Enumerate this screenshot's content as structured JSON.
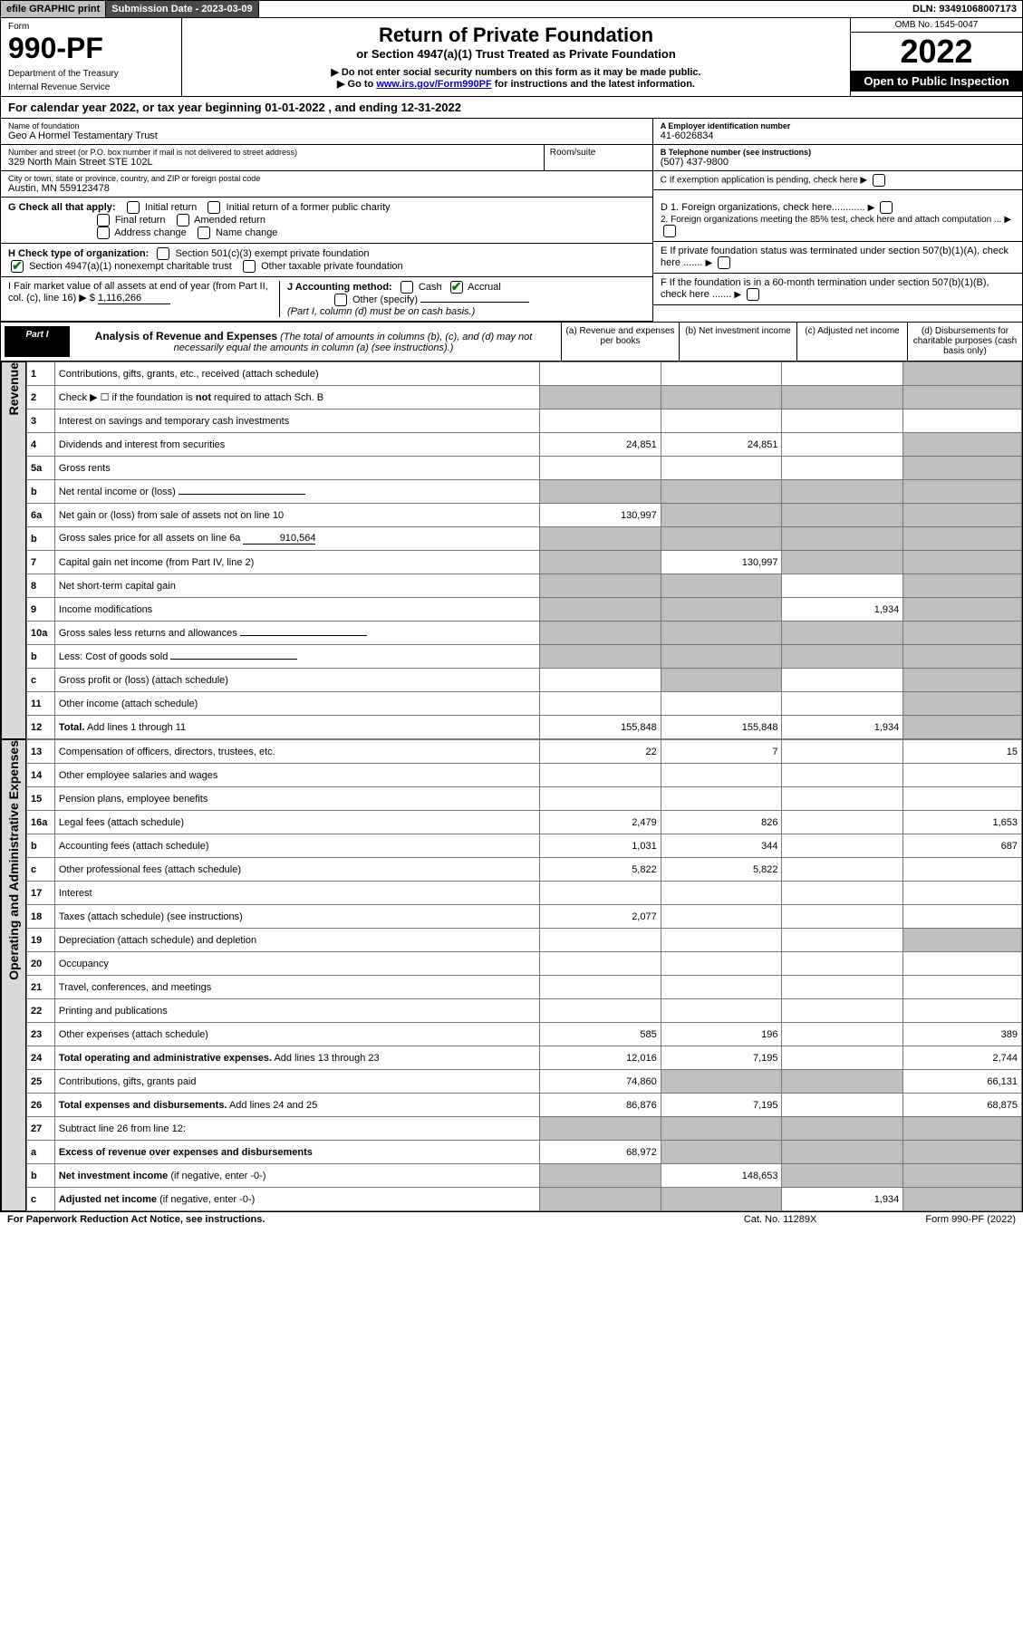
{
  "topbar": {
    "efile": "efile GRAPHIC print",
    "subdate_label": "Submission Date - 2023-03-09",
    "dln": "DLN: 93491068007173"
  },
  "header": {
    "form_label": "Form",
    "form_number": "990-PF",
    "dept1": "Department of the Treasury",
    "dept2": "Internal Revenue Service",
    "title": "Return of Private Foundation",
    "subtitle1": "or Section 4947(a)(1) Trust Treated as Private Foundation",
    "subtitle2": "▶ Do not enter social security numbers on this form as it may be made public.",
    "subtitle3_pre": "▶ Go to ",
    "subtitle3_link": "www.irs.gov/Form990PF",
    "subtitle3_post": " for instructions and the latest information.",
    "omb": "OMB No. 1545-0047",
    "year": "2022",
    "inspect": "Open to Public Inspection"
  },
  "calyear": "For calendar year 2022, or tax year beginning 01-01-2022              , and ending 12-31-2022",
  "foundation": {
    "name_label": "Name of foundation",
    "name": "Geo A Hormel Testamentary Trust",
    "addr_label": "Number and street (or P.O. box number if mail is not delivered to street address)",
    "addr": "329 North Main Street STE 102L",
    "room_label": "Room/suite",
    "city_label": "City or town, state or province, country, and ZIP or foreign postal code",
    "city": "Austin, MN  559123478",
    "ein_label": "A Employer identification number",
    "ein": "41-6026834",
    "phone_label": "B Telephone number (see instructions)",
    "phone": "(507) 437-9800",
    "c_label": "C If exemption application is pending, check here",
    "d1": "D 1. Foreign organizations, check here............",
    "d2": "2. Foreign organizations meeting the 85% test, check here and attach computation ...",
    "e_label": "E  If private foundation status was terminated under section 507(b)(1)(A), check here .......",
    "f_label": "F  If the foundation is in a 60-month termination under section 507(b)(1)(B), check here .......",
    "g_label": "G Check all that apply:",
    "g_opts": [
      "Initial return",
      "Initial return of a former public charity",
      "Final return",
      "Amended return",
      "Address change",
      "Name change"
    ],
    "h_label": "H Check type of organization:",
    "h_opt1": "Section 501(c)(3) exempt private foundation",
    "h_opt2": "Section 4947(a)(1) nonexempt charitable trust",
    "h_opt3": "Other taxable private foundation",
    "i_label": "I Fair market value of all assets at end of year (from Part II, col. (c), line 16) ▶ $",
    "i_value": "1,116,266",
    "j_label": "J Accounting method:",
    "j_cash": "Cash",
    "j_accrual": "Accrual",
    "j_other": "Other (specify)",
    "j_note": "(Part I, column (d) must be on cash basis.)"
  },
  "part1": {
    "tag": "Part I",
    "title": "Analysis of Revenue and Expenses",
    "note": " (The total of amounts in columns (b), (c), and (d) may not necessarily equal the amounts in column (a) (see instructions).)",
    "col_a": "(a)  Revenue and expenses per books",
    "col_b": "(b)  Net investment income",
    "col_c": "(c)  Adjusted net income",
    "col_d": "(d)  Disbursements for charitable purposes (cash basis only)"
  },
  "sections": {
    "revenue": "Revenue",
    "expenses": "Operating and Administrative Expenses"
  },
  "rows": [
    {
      "n": "1",
      "d": "Contributions, gifts, grants, etc., received (attach schedule)",
      "a": "",
      "b": "",
      "c": "",
      "e": "",
      "greyD": true
    },
    {
      "n": "2",
      "d": "Check ▶ ☐ if the foundation is <b>not</b> required to attach Sch. B",
      "nocols": true
    },
    {
      "n": "3",
      "d": "Interest on savings and temporary cash investments",
      "a": "",
      "b": "",
      "c": "",
      "e": ""
    },
    {
      "n": "4",
      "d": "Dividends and interest from securities",
      "a": "24,851",
      "b": "24,851",
      "c": "",
      "e": "",
      "greyD": true
    },
    {
      "n": "5a",
      "d": "Gross rents",
      "a": "",
      "b": "",
      "c": "",
      "e": "",
      "greyD": true
    },
    {
      "n": "b",
      "d": "Net rental income or (loss)",
      "nocols": true,
      "uline": true
    },
    {
      "n": "6a",
      "d": "Net gain or (loss) from sale of assets not on line 10",
      "a": "130,997",
      "greyB": true,
      "greyC": true,
      "greyD": true
    },
    {
      "n": "b",
      "d": "Gross sales price for all assets on line 6a",
      "nocols": true,
      "uval": "910,564"
    },
    {
      "n": "7",
      "d": "Capital gain net income (from Part IV, line 2)",
      "greyA": true,
      "b": "130,997",
      "greyC": true,
      "greyD": true
    },
    {
      "n": "8",
      "d": "Net short-term capital gain",
      "greyA": true,
      "greyB": true,
      "c": "",
      "greyD": true
    },
    {
      "n": "9",
      "d": "Income modifications",
      "greyA": true,
      "greyB": true,
      "c": "1,934",
      "greyD": true
    },
    {
      "n": "10a",
      "d": "Gross sales less returns and allowances",
      "nocols": true,
      "uline": true
    },
    {
      "n": "b",
      "d": "Less: Cost of goods sold",
      "nocols": true,
      "uline": true
    },
    {
      "n": "c",
      "d": "Gross profit or (loss) (attach schedule)",
      "a": "",
      "greyB": true,
      "c": "",
      "greyD": true
    },
    {
      "n": "11",
      "d": "Other income (attach schedule)",
      "a": "",
      "b": "",
      "c": "",
      "greyD": true
    },
    {
      "n": "12",
      "d": "<b>Total.</b> Add lines 1 through 11",
      "a": "155,848",
      "b": "155,848",
      "c": "1,934",
      "greyD": true,
      "bold": true
    }
  ],
  "exp_rows": [
    {
      "n": "13",
      "d": "Compensation of officers, directors, trustees, etc.",
      "a": "22",
      "b": "7",
      "c": "",
      "e": "15"
    },
    {
      "n": "14",
      "d": "Other employee salaries and wages",
      "a": "",
      "b": "",
      "c": "",
      "e": ""
    },
    {
      "n": "15",
      "d": "Pension plans, employee benefits",
      "a": "",
      "b": "",
      "c": "",
      "e": ""
    },
    {
      "n": "16a",
      "d": "Legal fees (attach schedule)",
      "a": "2,479",
      "b": "826",
      "c": "",
      "e": "1,653"
    },
    {
      "n": "b",
      "d": "Accounting fees (attach schedule)",
      "a": "1,031",
      "b": "344",
      "c": "",
      "e": "687"
    },
    {
      "n": "c",
      "d": "Other professional fees (attach schedule)",
      "a": "5,822",
      "b": "5,822",
      "c": "",
      "e": ""
    },
    {
      "n": "17",
      "d": "Interest",
      "a": "",
      "b": "",
      "c": "",
      "e": ""
    },
    {
      "n": "18",
      "d": "Taxes (attach schedule) (see instructions)",
      "a": "2,077",
      "b": "",
      "c": "",
      "e": ""
    },
    {
      "n": "19",
      "d": "Depreciation (attach schedule) and depletion",
      "a": "",
      "b": "",
      "c": "",
      "greyD": true
    },
    {
      "n": "20",
      "d": "Occupancy",
      "a": "",
      "b": "",
      "c": "",
      "e": ""
    },
    {
      "n": "21",
      "d": "Travel, conferences, and meetings",
      "a": "",
      "b": "",
      "c": "",
      "e": ""
    },
    {
      "n": "22",
      "d": "Printing and publications",
      "a": "",
      "b": "",
      "c": "",
      "e": ""
    },
    {
      "n": "23",
      "d": "Other expenses (attach schedule)",
      "a": "585",
      "b": "196",
      "c": "",
      "e": "389"
    },
    {
      "n": "24",
      "d": "<b>Total operating and administrative expenses.</b> Add lines 13 through 23",
      "a": "12,016",
      "b": "7,195",
      "c": "",
      "e": "2,744"
    },
    {
      "n": "25",
      "d": "Contributions, gifts, grants paid",
      "a": "74,860",
      "greyB": true,
      "greyC": true,
      "e": "66,131"
    },
    {
      "n": "26",
      "d": "<b>Total expenses and disbursements.</b> Add lines 24 and 25",
      "a": "86,876",
      "b": "7,195",
      "c": "",
      "e": "68,875"
    },
    {
      "n": "27",
      "d": "Subtract line 26 from line 12:",
      "greyA": true,
      "greyB": true,
      "greyC": true,
      "greyD": true
    },
    {
      "n": "a",
      "d": "<b>Excess of revenue over expenses and disbursements</b>",
      "a": "68,972",
      "greyB": true,
      "greyC": true,
      "greyD": true
    },
    {
      "n": "b",
      "d": "<b>Net investment income</b> (if negative, enter -0-)",
      "greyA": true,
      "b": "148,653",
      "greyC": true,
      "greyD": true
    },
    {
      "n": "c",
      "d": "<b>Adjusted net income</b> (if negative, enter -0-)",
      "greyA": true,
      "greyB": true,
      "c": "1,934",
      "greyD": true
    }
  ],
  "footer": {
    "left": "For Paperwork Reduction Act Notice, see instructions.",
    "mid": "Cat. No. 11289X",
    "right": "Form 990-PF (2022)"
  }
}
